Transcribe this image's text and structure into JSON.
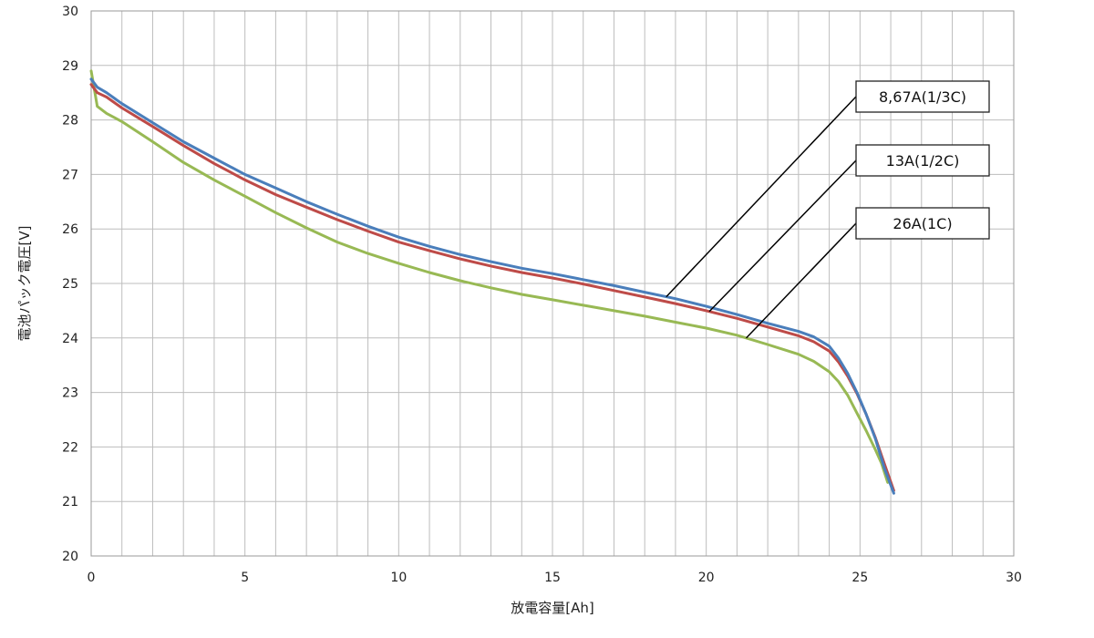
{
  "chart_data": {
    "type": "line",
    "title": "",
    "xlabel": "放電容量[Ah]",
    "ylabel": "電池パック電圧[V]",
    "xlim": [
      0,
      30
    ],
    "ylim": [
      20,
      30
    ],
    "xticks": [
      0,
      5,
      10,
      15,
      20,
      25,
      30
    ],
    "yticks": [
      20,
      21,
      22,
      23,
      24,
      25,
      26,
      27,
      28,
      29,
      30
    ],
    "grid": true,
    "legend": "callout-labels",
    "series": [
      {
        "name": "8.67A(1/3C)",
        "color": "#4a7ebb",
        "x": [
          0,
          0.2,
          0.5,
          1,
          2,
          3,
          4,
          5,
          6,
          7,
          8,
          9,
          10,
          11,
          12,
          13,
          14,
          15,
          16,
          17,
          18,
          19,
          20,
          21,
          22,
          23,
          23.5,
          24,
          24.3,
          24.6,
          24.9,
          25.2,
          25.5,
          25.8,
          26.1
        ],
        "y": [
          28.75,
          28.6,
          28.5,
          28.3,
          27.95,
          27.6,
          27.3,
          27.0,
          26.75,
          26.5,
          26.27,
          26.05,
          25.85,
          25.68,
          25.53,
          25.4,
          25.28,
          25.18,
          25.07,
          24.96,
          24.84,
          24.72,
          24.58,
          24.43,
          24.27,
          24.12,
          24.02,
          23.85,
          23.63,
          23.35,
          23.0,
          22.6,
          22.15,
          21.6,
          21.15
        ]
      },
      {
        "name": "13A(1/2C)",
        "color": "#be4b48",
        "x": [
          0,
          0.2,
          0.5,
          1,
          2,
          3,
          4,
          5,
          6,
          7,
          8,
          9,
          10,
          11,
          12,
          13,
          14,
          15,
          16,
          17,
          18,
          19,
          20,
          21,
          22,
          23,
          23.5,
          24,
          24.3,
          24.6,
          24.9,
          25.2,
          25.5,
          25.8,
          26.1
        ],
        "y": [
          28.65,
          28.5,
          28.42,
          28.22,
          27.88,
          27.53,
          27.2,
          26.9,
          26.63,
          26.4,
          26.17,
          25.96,
          25.76,
          25.6,
          25.45,
          25.32,
          25.2,
          25.1,
          24.99,
          24.87,
          24.75,
          24.63,
          24.5,
          24.36,
          24.2,
          24.04,
          23.93,
          23.76,
          23.56,
          23.3,
          22.98,
          22.6,
          22.17,
          21.68,
          21.2
        ]
      },
      {
        "name": "26A(1C)",
        "color": "#98b954",
        "x": [
          0,
          0.2,
          0.5,
          1,
          2,
          3,
          4,
          5,
          6,
          7,
          8,
          9,
          10,
          11,
          12,
          13,
          14,
          15,
          16,
          17,
          18,
          19,
          20,
          21,
          22,
          23,
          23.5,
          24,
          24.3,
          24.6,
          24.9,
          25.2,
          25.5,
          25.7,
          25.9
        ],
        "y": [
          28.9,
          28.25,
          28.12,
          27.97,
          27.6,
          27.22,
          26.9,
          26.6,
          26.3,
          26.02,
          25.76,
          25.55,
          25.37,
          25.2,
          25.05,
          24.92,
          24.8,
          24.7,
          24.6,
          24.5,
          24.4,
          24.29,
          24.18,
          24.05,
          23.88,
          23.7,
          23.57,
          23.38,
          23.2,
          22.95,
          22.62,
          22.3,
          21.95,
          21.7,
          21.35
        ]
      }
    ],
    "callouts": [
      {
        "label": "8,67A(1/3C)",
        "series": 0,
        "anchor_x": 18.7
      },
      {
        "label": "13A(1/2C)",
        "series": 1,
        "anchor_x": 20.1
      },
      {
        "label": "26A(1C)",
        "series": 2,
        "anchor_x": 21.3
      }
    ]
  }
}
